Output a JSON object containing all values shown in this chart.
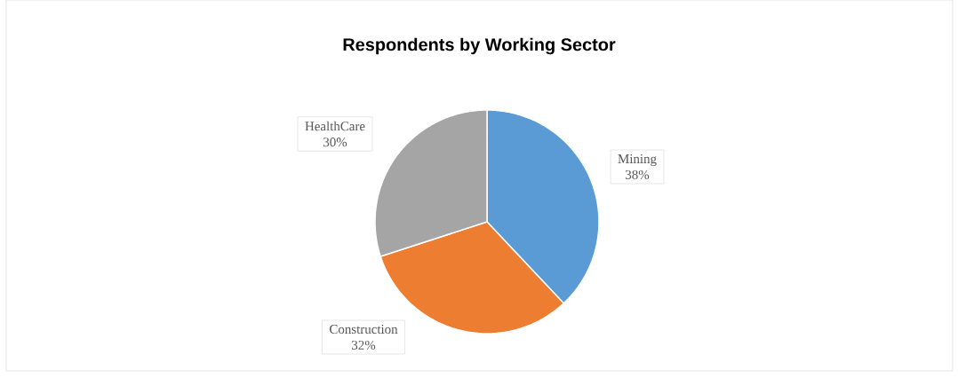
{
  "chart_data": {
    "type": "pie",
    "title": "Respondents by Working Sector",
    "categories": [
      "Mining",
      "Construction",
      "HealthCare"
    ],
    "values": [
      38,
      32,
      30
    ],
    "value_labels": [
      "38%",
      "32%",
      "30%"
    ],
    "colors": [
      "#5b9bd5",
      "#ed7d31",
      "#a5a5a5"
    ]
  }
}
